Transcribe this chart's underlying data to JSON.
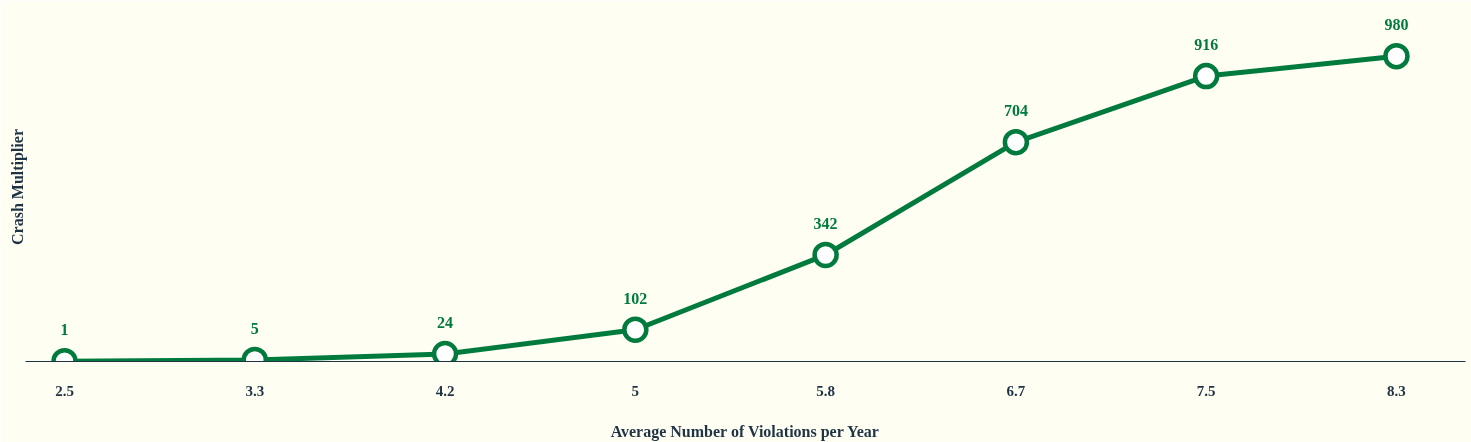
{
  "chart_data": {
    "type": "line",
    "xlabel": "Average Number of Violations per Year",
    "ylabel": "Crash Multiplier",
    "categories": [
      "2.5",
      "3.3",
      "4.2",
      "5",
      "5.8",
      "6.7",
      "7.5",
      "8.3"
    ],
    "series": [
      {
        "color": "#007a3d",
        "values": [
          1,
          5,
          24,
          102,
          342,
          704,
          916,
          980
        ]
      }
    ],
    "data_labels": true,
    "marker": "circle",
    "line_style": "solid",
    "grid": false,
    "tick_labels": "x"
  }
}
